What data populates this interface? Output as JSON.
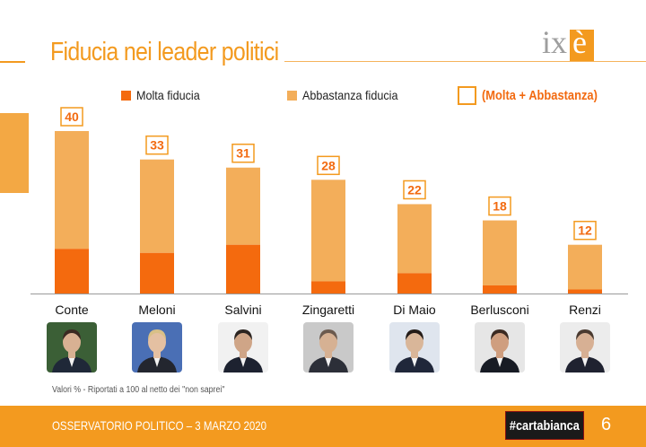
{
  "title": "Fiducia nei leader politici",
  "logo": {
    "i": "i",
    "x": "x",
    "e": "è"
  },
  "legend": {
    "molta": "Molta fiducia",
    "abbastanza": "Abbastanza fiducia",
    "total": "(Molta + Abbastanza)"
  },
  "colors": {
    "accent": "#F39A1F",
    "molta": "#F46A0E",
    "abbastanza": "#F3AE5A",
    "total_label": "#F26A10"
  },
  "chart_data": {
    "type": "bar",
    "stacked": true,
    "title": "Fiducia nei leader politici",
    "categories": [
      "Conte",
      "Meloni",
      "Salvini",
      "Zingaretti",
      "Di Maio",
      "Berlusconi",
      "Renzi"
    ],
    "series": [
      {
        "name": "Molta fiducia",
        "values": [
          11,
          10,
          12,
          3,
          5,
          2,
          1
        ]
      },
      {
        "name": "Abbastanza fiducia",
        "values": [
          29,
          23,
          19,
          25,
          17,
          16,
          11
        ]
      }
    ],
    "totals": [
      40,
      33,
      31,
      28,
      22,
      18,
      12
    ],
    "ylim": [
      0,
      40
    ],
    "xlabel": "",
    "ylabel": "",
    "grid": false,
    "legend_position": "top"
  },
  "photos": [
    {
      "name": "Conte",
      "bg": "#3b5f36",
      "face": "#d8b193",
      "hair": "#3a2a22",
      "suit": "#1f2838"
    },
    {
      "name": "Meloni",
      "bg": "#4a6fb5",
      "face": "#e4c0a2",
      "hair": "#d9c087",
      "suit": "#23262f"
    },
    {
      "name": "Salvini",
      "bg": "#f1f1f1",
      "face": "#cfa587",
      "hair": "#2b2420",
      "suit": "#1d2230"
    },
    {
      "name": "Zingaretti",
      "bg": "#c9c9c9",
      "face": "#d6b193",
      "hair": "#6b5a4e",
      "suit": "#2c2f38"
    },
    {
      "name": "Di Maio",
      "bg": "#dfe5ee",
      "face": "#d9b699",
      "hair": "#241c18",
      "suit": "#20273a"
    },
    {
      "name": "Berlusconi",
      "bg": "#e6e6e6",
      "face": "#cf9e7f",
      "hair": "#3b2a22",
      "suit": "#171b24"
    },
    {
      "name": "Renzi",
      "bg": "#ececec",
      "face": "#d7b094",
      "hair": "#4a3a30",
      "suit": "#1f2230"
    }
  ],
  "note": "Valori % - Riportati a 100 al netto dei \"non saprei\"",
  "footer": {
    "text": "OSSERVATORIO POLITICO – 3 MARZO 2020",
    "brand": "#cartabianca",
    "page": "6"
  }
}
